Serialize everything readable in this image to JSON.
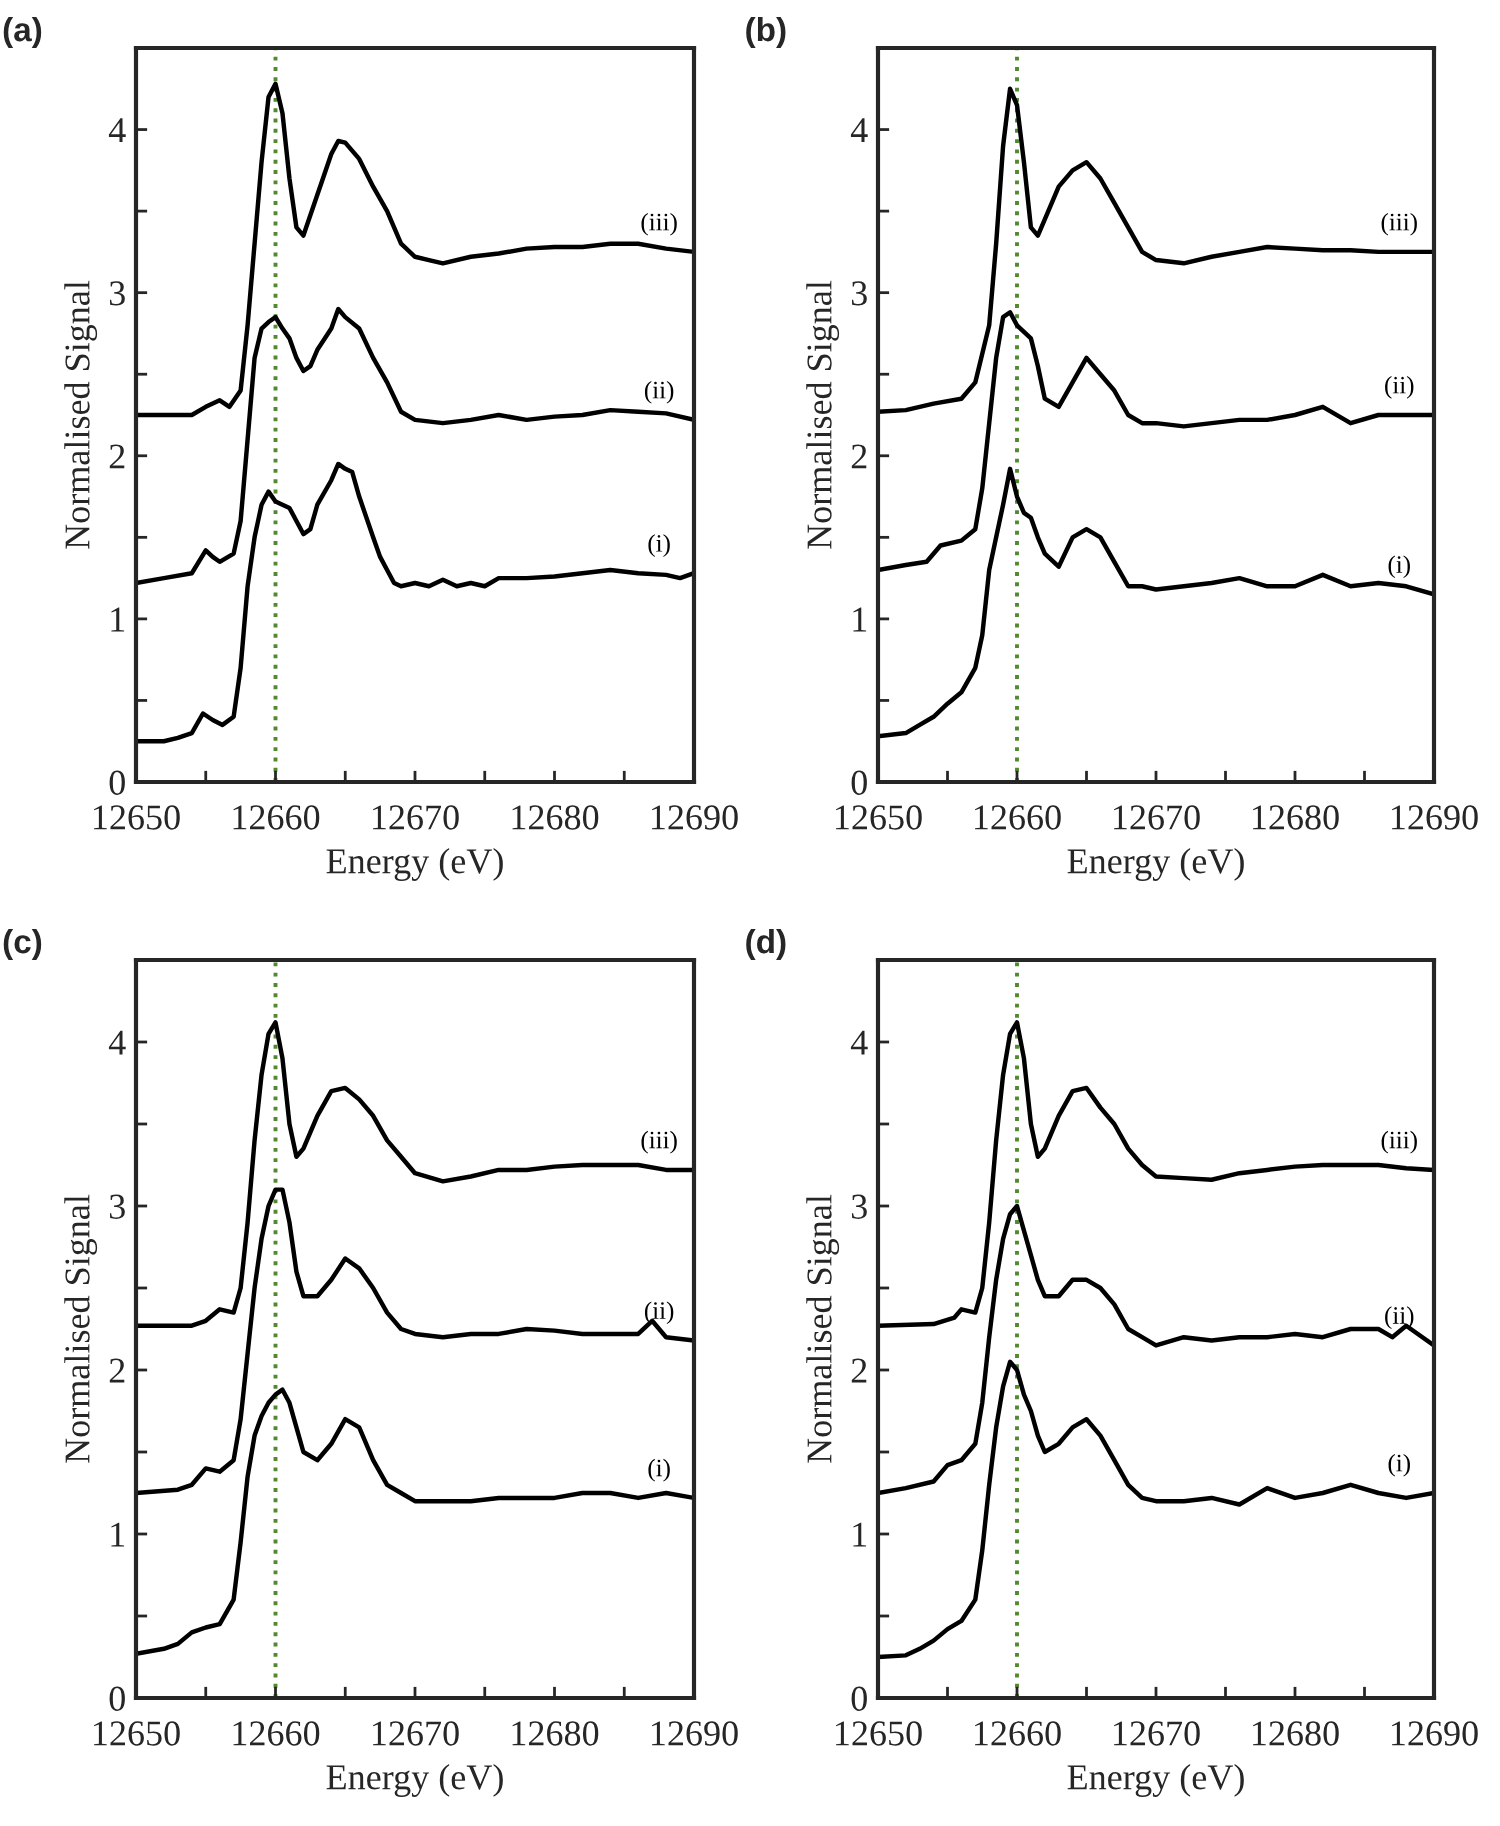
{
  "chart_data": [
    {
      "type": "line",
      "title": "(a)",
      "xlabel": "Energy (eV)",
      "ylabel": "Normalised Signal",
      "xlim": [
        12650,
        12690
      ],
      "ylim": [
        0,
        4.5
      ],
      "xticks": [
        12650,
        {
          "value": 12655,
          "label": null
        },
        12660,
        {
          "value": 12665,
          "label": null
        },
        12670,
        {
          "value": 12675,
          "label": null
        },
        12680,
        {
          "value": 12685,
          "label": null
        },
        12690
      ],
      "yticks": [
        0,
        {
          "value": 0.5,
          "label": null
        },
        1,
        {
          "value": 1.5,
          "label": null
        },
        2,
        {
          "value": 2.5,
          "label": null
        },
        3,
        {
          "value": 3.5,
          "label": null
        },
        4
      ],
      "grid": false,
      "legend": false,
      "marker": "none",
      "line_style": "solid",
      "ref_lines": [
        {
          "axis": "x",
          "value": 12660,
          "color": "#4f8a2e",
          "line_style": "dotted"
        }
      ],
      "series": [
        {
          "name": "(i)",
          "color": "#000000",
          "x": [
            12650,
            12652,
            12653,
            12654,
            12654.8,
            12655.5,
            12656.2,
            12657,
            12657.5,
            12658,
            12658.5,
            12659,
            12659.5,
            12660,
            12660.5,
            12661,
            12661.5,
            12662,
            12662.5,
            12663,
            12664,
            12664.5,
            12665,
            12665.5,
            12666,
            12667,
            12667.5,
            12668,
            12668.5,
            12669,
            12670,
            12671,
            12672,
            12673,
            12674,
            12675,
            12676,
            12678,
            12680,
            12682,
            12684,
            12686,
            12688,
            12689,
            12690
          ],
          "values": [
            0.25,
            0.25,
            0.27,
            0.3,
            0.42,
            0.38,
            0.35,
            0.4,
            0.7,
            1.2,
            1.5,
            1.7,
            1.78,
            1.72,
            1.7,
            1.68,
            1.6,
            1.52,
            1.55,
            1.7,
            1.85,
            1.95,
            1.92,
            1.9,
            1.75,
            1.5,
            1.38,
            1.3,
            1.22,
            1.2,
            1.22,
            1.2,
            1.24,
            1.2,
            1.22,
            1.2,
            1.25,
            1.25,
            1.26,
            1.28,
            1.3,
            1.28,
            1.27,
            1.25,
            1.28
          ]
        },
        {
          "name": "(ii)",
          "color": "#000000",
          "x": [
            12650,
            12652,
            12654,
            12655,
            12655.5,
            12656,
            12657,
            12657.5,
            12658,
            12658.5,
            12659,
            12659.5,
            12660,
            12660.5,
            12661,
            12661.5,
            12662,
            12662.5,
            12663,
            12664,
            12664.5,
            12665,
            12666,
            12667,
            12668,
            12669,
            12670,
            12672,
            12674,
            12676,
            12678,
            12680,
            12682,
            12684,
            12686,
            12688,
            12690
          ],
          "values": [
            1.22,
            1.25,
            1.28,
            1.42,
            1.38,
            1.35,
            1.4,
            1.6,
            2.1,
            2.6,
            2.78,
            2.82,
            2.85,
            2.78,
            2.72,
            2.6,
            2.52,
            2.55,
            2.65,
            2.78,
            2.9,
            2.85,
            2.78,
            2.6,
            2.45,
            2.27,
            2.22,
            2.2,
            2.22,
            2.25,
            2.22,
            2.24,
            2.25,
            2.28,
            2.27,
            2.26,
            2.22
          ]
        },
        {
          "name": "(iii)",
          "color": "#000000",
          "x": [
            12650,
            12654,
            12655,
            12656,
            12656.7,
            12657.5,
            12658,
            12658.5,
            12659,
            12659.5,
            12660,
            12660.5,
            12661,
            12661.5,
            12662,
            12663,
            12664,
            12664.5,
            12665,
            12666,
            12667,
            12668,
            12669,
            12670,
            12671,
            12672,
            12674,
            12676,
            12678,
            12680,
            12682,
            12684,
            12686,
            12688,
            12690
          ],
          "values": [
            2.25,
            2.25,
            2.3,
            2.34,
            2.3,
            2.4,
            2.8,
            3.3,
            3.8,
            4.2,
            4.28,
            4.1,
            3.7,
            3.4,
            3.35,
            3.6,
            3.85,
            3.93,
            3.92,
            3.82,
            3.65,
            3.5,
            3.3,
            3.22,
            3.2,
            3.18,
            3.22,
            3.24,
            3.27,
            3.28,
            3.28,
            3.3,
            3.3,
            3.27,
            3.25
          ]
        }
      ]
    },
    {
      "type": "line",
      "title": "(b)",
      "xlabel": "Energy (eV)",
      "ylabel": "Normalised Signal",
      "xlim": [
        12650,
        12690
      ],
      "ylim": [
        0,
        4.5
      ],
      "xticks": [
        12650,
        {
          "value": 12655,
          "label": null
        },
        12660,
        {
          "value": 12665,
          "label": null
        },
        12670,
        {
          "value": 12675,
          "label": null
        },
        12680,
        {
          "value": 12685,
          "label": null
        },
        12690
      ],
      "yticks": [
        0,
        {
          "value": 0.5,
          "label": null
        },
        1,
        {
          "value": 1.5,
          "label": null
        },
        2,
        {
          "value": 2.5,
          "label": null
        },
        3,
        {
          "value": 3.5,
          "label": null
        },
        4
      ],
      "grid": false,
      "legend": false,
      "marker": "none",
      "line_style": "solid",
      "ref_lines": [
        {
          "axis": "x",
          "value": 12660,
          "color": "#4f8a2e",
          "line_style": "dotted"
        }
      ],
      "series": [
        {
          "name": "(i)",
          "color": "#000000",
          "x": [
            12650,
            12652,
            12653,
            12654,
            12655,
            12656,
            12657,
            12657.5,
            12658,
            12658.5,
            12659,
            12659.5,
            12660,
            12660.5,
            12661,
            12661.5,
            12662,
            12663,
            12664,
            12665,
            12666,
            12667,
            12668,
            12669,
            12670,
            12672,
            12674,
            12676,
            12678,
            12680,
            12682,
            12684,
            12686,
            12688,
            12690
          ],
          "values": [
            0.28,
            0.3,
            0.35,
            0.4,
            0.48,
            0.55,
            0.7,
            0.9,
            1.3,
            1.5,
            1.7,
            1.92,
            1.75,
            1.65,
            1.62,
            1.5,
            1.4,
            1.32,
            1.5,
            1.55,
            1.5,
            1.35,
            1.2,
            1.2,
            1.18,
            1.2,
            1.22,
            1.25,
            1.2,
            1.2,
            1.27,
            1.2,
            1.22,
            1.2,
            1.15
          ]
        },
        {
          "name": "(ii)",
          "color": "#000000",
          "x": [
            12650,
            12652,
            12653.5,
            12654.5,
            12656,
            12657,
            12657.5,
            12658,
            12658.5,
            12659,
            12659.5,
            12660,
            12661,
            12661.5,
            12662,
            12663,
            12664,
            12665,
            12666,
            12667,
            12668,
            12669,
            12670,
            12672,
            12674,
            12676,
            12678,
            12680,
            12682,
            12684,
            12686,
            12688,
            12690
          ],
          "values": [
            1.3,
            1.33,
            1.35,
            1.45,
            1.48,
            1.55,
            1.8,
            2.2,
            2.6,
            2.85,
            2.88,
            2.8,
            2.72,
            2.55,
            2.35,
            2.3,
            2.45,
            2.6,
            2.5,
            2.4,
            2.25,
            2.2,
            2.2,
            2.18,
            2.2,
            2.22,
            2.22,
            2.25,
            2.3,
            2.2,
            2.25,
            2.25,
            2.25
          ]
        },
        {
          "name": "(iii)",
          "color": "#000000",
          "x": [
            12650,
            12652,
            12654,
            12656,
            12657,
            12658,
            12658.5,
            12659,
            12659.5,
            12660,
            12660.5,
            12661,
            12661.5,
            12662,
            12663,
            12664,
            12665,
            12666,
            12667,
            12668,
            12669,
            12670,
            12672,
            12674,
            12676,
            12678,
            12680,
            12682,
            12684,
            12686,
            12688,
            12690
          ],
          "values": [
            2.27,
            2.28,
            2.32,
            2.35,
            2.45,
            2.8,
            3.3,
            3.9,
            4.25,
            4.15,
            3.8,
            3.4,
            3.35,
            3.45,
            3.65,
            3.75,
            3.8,
            3.7,
            3.55,
            3.4,
            3.25,
            3.2,
            3.18,
            3.22,
            3.25,
            3.28,
            3.27,
            3.26,
            3.26,
            3.25,
            3.25,
            3.25
          ]
        }
      ]
    },
    {
      "type": "line",
      "title": "(c)",
      "xlabel": "Energy (eV)",
      "ylabel": "Normalised Signal",
      "xlim": [
        12650,
        12690
      ],
      "ylim": [
        0,
        4.5
      ],
      "xticks": [
        12650,
        {
          "value": 12655,
          "label": null
        },
        12660,
        {
          "value": 12665,
          "label": null
        },
        12670,
        {
          "value": 12675,
          "label": null
        },
        12680,
        {
          "value": 12685,
          "label": null
        },
        12690
      ],
      "yticks": [
        0,
        {
          "value": 0.5,
          "label": null
        },
        1,
        {
          "value": 1.5,
          "label": null
        },
        2,
        {
          "value": 2.5,
          "label": null
        },
        3,
        {
          "value": 3.5,
          "label": null
        },
        4
      ],
      "grid": false,
      "legend": false,
      "marker": "none",
      "line_style": "solid",
      "ref_lines": [
        {
          "axis": "x",
          "value": 12660,
          "color": "#4f8a2e",
          "line_style": "dotted"
        }
      ],
      "series": [
        {
          "name": "(i)",
          "color": "#000000",
          "x": [
            12650,
            12652,
            12653,
            12654,
            12655,
            12656,
            12657,
            12657.5,
            12658,
            12658.5,
            12659,
            12659.5,
            12660,
            12660.5,
            12661,
            12661.5,
            12662,
            12663,
            12664,
            12665,
            12666,
            12667,
            12668,
            12669,
            12670,
            12672,
            12674,
            12676,
            12678,
            12680,
            12682,
            12684,
            12686,
            12688,
            12690
          ],
          "values": [
            0.27,
            0.3,
            0.33,
            0.4,
            0.43,
            0.45,
            0.6,
            0.95,
            1.35,
            1.6,
            1.72,
            1.8,
            1.85,
            1.88,
            1.8,
            1.65,
            1.5,
            1.45,
            1.55,
            1.7,
            1.65,
            1.45,
            1.3,
            1.25,
            1.2,
            1.2,
            1.2,
            1.22,
            1.22,
            1.22,
            1.25,
            1.25,
            1.22,
            1.25,
            1.22
          ]
        },
        {
          "name": "(ii)",
          "color": "#000000",
          "x": [
            12650,
            12653,
            12654,
            12655,
            12656,
            12657,
            12657.5,
            12658,
            12658.5,
            12659,
            12659.5,
            12660,
            12660.5,
            12661,
            12661.5,
            12662,
            12663,
            12664,
            12665,
            12666,
            12667,
            12668,
            12669,
            12670,
            12672,
            12674,
            12676,
            12678,
            12680,
            12682,
            12684,
            12686,
            12687,
            12688,
            12690
          ],
          "values": [
            1.25,
            1.27,
            1.3,
            1.4,
            1.38,
            1.45,
            1.7,
            2.1,
            2.5,
            2.8,
            3.0,
            3.1,
            3.1,
            2.9,
            2.6,
            2.45,
            2.45,
            2.55,
            2.68,
            2.62,
            2.5,
            2.35,
            2.25,
            2.22,
            2.2,
            2.22,
            2.22,
            2.25,
            2.24,
            2.22,
            2.22,
            2.22,
            2.3,
            2.2,
            2.18
          ]
        },
        {
          "name": "(iii)",
          "color": "#000000",
          "x": [
            12650,
            12654,
            12655,
            12656,
            12657,
            12657.5,
            12658,
            12658.5,
            12659,
            12659.5,
            12660,
            12660.5,
            12661,
            12661.5,
            12662,
            12663,
            12664,
            12665,
            12666,
            12667,
            12668,
            12669,
            12670,
            12672,
            12674,
            12676,
            12678,
            12680,
            12682,
            12684,
            12686,
            12688,
            12690
          ],
          "values": [
            2.27,
            2.27,
            2.3,
            2.37,
            2.35,
            2.5,
            2.9,
            3.4,
            3.8,
            4.05,
            4.12,
            3.9,
            3.5,
            3.3,
            3.35,
            3.55,
            3.7,
            3.72,
            3.65,
            3.55,
            3.4,
            3.3,
            3.2,
            3.15,
            3.18,
            3.22,
            3.22,
            3.24,
            3.25,
            3.25,
            3.25,
            3.22,
            3.22
          ]
        }
      ]
    },
    {
      "type": "line",
      "title": "(d)",
      "xlabel": "Energy (eV)",
      "ylabel": "Normalised Signal",
      "xlim": [
        12650,
        12690
      ],
      "ylim": [
        0,
        4.5
      ],
      "xticks": [
        12650,
        {
          "value": 12655,
          "label": null
        },
        12660,
        {
          "value": 12665,
          "label": null
        },
        12670,
        {
          "value": 12675,
          "label": null
        },
        12680,
        {
          "value": 12685,
          "label": null
        },
        12690
      ],
      "yticks": [
        0,
        {
          "value": 0.5,
          "label": null
        },
        1,
        {
          "value": 1.5,
          "label": null
        },
        2,
        {
          "value": 2.5,
          "label": null
        },
        3,
        {
          "value": 3.5,
          "label": null
        },
        4
      ],
      "grid": false,
      "legend": false,
      "marker": "none",
      "line_style": "solid",
      "ref_lines": [
        {
          "axis": "x",
          "value": 12660,
          "color": "#4f8a2e",
          "line_style": "dotted"
        }
      ],
      "series": [
        {
          "name": "(i)",
          "color": "#000000",
          "x": [
            12650,
            12652,
            12653,
            12654,
            12655,
            12656,
            12657,
            12657.5,
            12658,
            12658.5,
            12659,
            12659.5,
            12660,
            12660.5,
            12661,
            12661.5,
            12662,
            12663,
            12664,
            12665,
            12666,
            12667,
            12668,
            12669,
            12670,
            12672,
            12674,
            12676,
            12678,
            12680,
            12682,
            12684,
            12686,
            12688,
            12690
          ],
          "values": [
            0.25,
            0.26,
            0.3,
            0.35,
            0.42,
            0.47,
            0.6,
            0.9,
            1.3,
            1.65,
            1.9,
            2.05,
            2.0,
            1.85,
            1.75,
            1.6,
            1.5,
            1.55,
            1.65,
            1.7,
            1.6,
            1.45,
            1.3,
            1.22,
            1.2,
            1.2,
            1.22,
            1.18,
            1.28,
            1.22,
            1.25,
            1.3,
            1.25,
            1.22,
            1.25
          ]
        },
        {
          "name": "(ii)",
          "color": "#000000",
          "x": [
            12650,
            12652,
            12654,
            12655,
            12656,
            12657,
            12657.5,
            12658,
            12658.5,
            12659,
            12659.5,
            12660,
            12660.5,
            12661,
            12661.5,
            12662,
            12663,
            12664,
            12665,
            12666,
            12667,
            12668,
            12669,
            12670,
            12672,
            12674,
            12676,
            12678,
            12680,
            12682,
            12684,
            12686,
            12687,
            12688,
            12690
          ],
          "values": [
            1.25,
            1.28,
            1.32,
            1.42,
            1.45,
            1.55,
            1.8,
            2.2,
            2.55,
            2.8,
            2.95,
            3.0,
            2.85,
            2.7,
            2.55,
            2.45,
            2.45,
            2.55,
            2.55,
            2.5,
            2.4,
            2.25,
            2.2,
            2.15,
            2.2,
            2.18,
            2.2,
            2.2,
            2.22,
            2.2,
            2.25,
            2.25,
            2.2,
            2.27,
            2.15
          ]
        },
        {
          "name": "(iii)",
          "color": "#000000",
          "x": [
            12650,
            12654,
            12655.5,
            12656,
            12657,
            12657.5,
            12658,
            12658.5,
            12659,
            12659.5,
            12660,
            12660.5,
            12661,
            12661.5,
            12662,
            12663,
            12664,
            12665,
            12666,
            12667,
            12668,
            12669,
            12670,
            12672,
            12674,
            12676,
            12678,
            12680,
            12682,
            12684,
            12686,
            12688,
            12690
          ],
          "values": [
            2.27,
            2.28,
            2.32,
            2.37,
            2.35,
            2.5,
            2.9,
            3.4,
            3.8,
            4.05,
            4.12,
            3.9,
            3.5,
            3.3,
            3.35,
            3.55,
            3.7,
            3.72,
            3.6,
            3.5,
            3.35,
            3.25,
            3.18,
            3.17,
            3.16,
            3.2,
            3.22,
            3.24,
            3.25,
            3.25,
            3.25,
            3.23,
            3.22
          ]
        }
      ]
    }
  ]
}
